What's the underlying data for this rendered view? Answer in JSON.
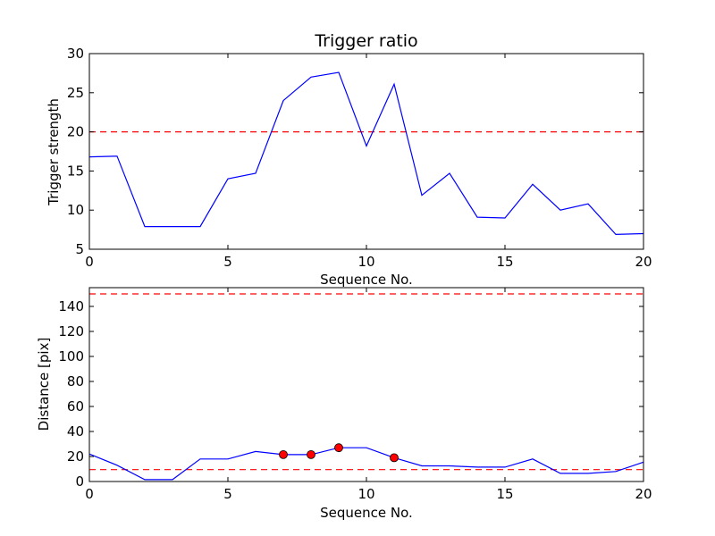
{
  "chart_data": [
    {
      "type": "line",
      "title": "Trigger ratio",
      "xlabel": "Sequence No.",
      "ylabel": "Trigger strength",
      "xlim": [
        0,
        20
      ],
      "ylim": [
        5,
        30
      ],
      "xticks": [
        0,
        5,
        10,
        15,
        20
      ],
      "yticks": [
        5,
        10,
        15,
        20,
        25,
        30
      ],
      "grid": false,
      "series": [
        {
          "color": "#0000ff",
          "x": [
            0,
            1,
            2,
            3,
            4,
            5,
            6,
            7,
            8,
            9,
            10,
            11,
            12,
            13,
            14,
            15,
            16,
            17,
            18,
            19,
            20
          ],
          "y": [
            16.8,
            16.9,
            7.9,
            7.9,
            7.9,
            14.0,
            14.7,
            24.0,
            27.0,
            27.6,
            18.2,
            26.1,
            11.9,
            14.7,
            9.1,
            9.0,
            13.3,
            10.0,
            10.8,
            6.9,
            7.0
          ]
        }
      ],
      "hlines": [
        {
          "y": 20,
          "color": "#ff0000",
          "style": "dashed"
        }
      ]
    },
    {
      "type": "line",
      "title": "",
      "xlabel": "Sequence No.",
      "ylabel": "Distance [pix]",
      "xlim": [
        0,
        20
      ],
      "ylim": [
        0,
        155
      ],
      "xticks": [
        0,
        5,
        10,
        15,
        20
      ],
      "yticks": [
        0,
        20,
        40,
        60,
        80,
        100,
        120,
        140
      ],
      "grid": false,
      "series": [
        {
          "color": "#0000ff",
          "x": [
            0,
            1,
            2,
            3,
            4,
            5,
            6,
            7,
            8,
            9,
            10,
            11,
            12,
            13,
            14,
            15,
            16,
            17,
            18,
            19,
            20
          ],
          "y": [
            22,
            13,
            1.5,
            1.5,
            18,
            18,
            24,
            21.5,
            21.5,
            27,
            27,
            19,
            12.5,
            12.5,
            11.5,
            11.5,
            18,
            6.5,
            6.5,
            8,
            15.5
          ]
        }
      ],
      "markers": {
        "color": "#ff0000",
        "x": [
          7,
          8,
          9,
          11
        ],
        "y": [
          21.5,
          21.5,
          27,
          19
        ]
      },
      "hlines": [
        {
          "y": 150,
          "color": "#ff0000",
          "style": "dashed"
        },
        {
          "y": 9.5,
          "color": "#ff0000",
          "style": "dashed"
        }
      ]
    }
  ]
}
